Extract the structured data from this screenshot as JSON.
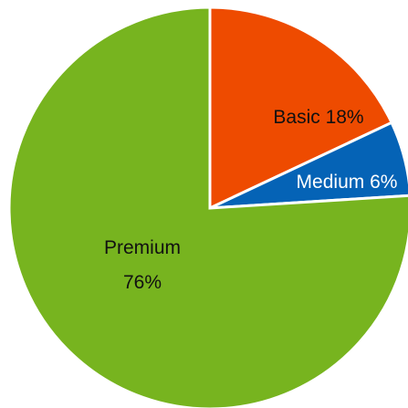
{
  "chart_data": {
    "type": "pie",
    "title": "",
    "slices": [
      {
        "name": "Basic",
        "value": 18,
        "label": "Basic 18%",
        "color": "#ee4b00"
      },
      {
        "name": "Medium",
        "value": 6,
        "label": "Medium 6%",
        "color": "#0563b6"
      },
      {
        "name": "Premium",
        "value": 76,
        "label_lines": [
          "Premium",
          "76%"
        ],
        "color": "#77b41f"
      }
    ],
    "start_angle_deg": 0,
    "direction": "clockwise",
    "legend": "none"
  }
}
